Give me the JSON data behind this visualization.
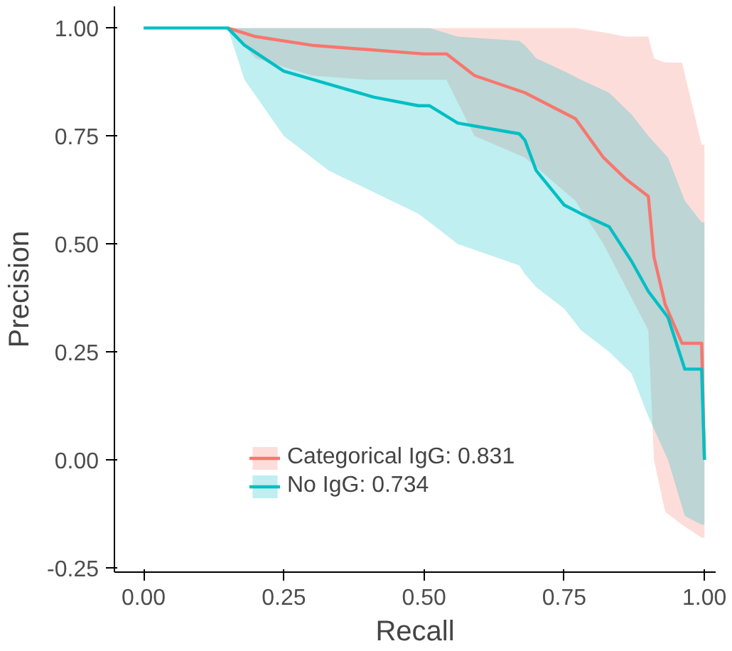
{
  "chart_data": {
    "type": "line",
    "xlabel": "Recall",
    "ylabel": "Precision",
    "xlim": [
      -0.052,
      1.02
    ],
    "ylim": [
      -0.26,
      1.05
    ],
    "xticks": [
      {
        "value": 0,
        "label": "0.00"
      },
      {
        "value": 0.25,
        "label": "0.25"
      },
      {
        "value": 0.5,
        "label": "0.50"
      },
      {
        "value": 0.75,
        "label": "0.75"
      },
      {
        "value": 1,
        "label": "1.00"
      }
    ],
    "yticks": [
      {
        "value": -0.25,
        "label": "-0.25"
      },
      {
        "value": 0,
        "label": "0.00"
      },
      {
        "value": 0.25,
        "label": "0.25"
      },
      {
        "value": 0.5,
        "label": "0.50"
      },
      {
        "value": 0.75,
        "label": "0.75"
      },
      {
        "value": 1,
        "label": "1.00"
      }
    ],
    "grid": false,
    "legend": "bottom",
    "series": [
      {
        "name": "Categorical IgG: 0.831",
        "color": "#f8766d",
        "x": [
          0,
          0.15,
          0.2,
          0.3,
          0.4,
          0.5,
          0.54,
          0.59,
          0.68,
          0.77,
          0.82,
          0.86,
          0.9,
          0.91,
          0.93,
          0.96,
          0.995,
          1.0
        ],
        "values": [
          null,
          1,
          0.98,
          0.96,
          0.95,
          0.94,
          0.94,
          0.89,
          0.85,
          0.79,
          0.7,
          0.65,
          0.61,
          0.47,
          0.36,
          0.27,
          0.27,
          0
        ],
        "upper": [
          1,
          1,
          1,
          1,
          1,
          1,
          1,
          1,
          1,
          1,
          0.99,
          0.98,
          0.98,
          0.93,
          0.92,
          0.92,
          0.73,
          0.73
        ],
        "lower": [
          1,
          1,
          0.93,
          0.89,
          0.88,
          0.88,
          0.88,
          0.75,
          0.7,
          0.6,
          0.5,
          0.4,
          0.3,
          0.0,
          -0.12,
          -0.15,
          -0.18,
          -0.18
        ]
      },
      {
        "name": "No IgG: 0.734",
        "color": "#00bfc4",
        "x": [
          0,
          0.15,
          0.18,
          0.25,
          0.33,
          0.41,
          0.49,
          0.51,
          0.56,
          0.67,
          0.68,
          0.7,
          0.75,
          0.78,
          0.83,
          0.87,
          0.9,
          0.935,
          0.965,
          0.995,
          1.0
        ],
        "values": [
          1,
          1,
          0.96,
          0.9,
          0.87,
          0.84,
          0.82,
          0.82,
          0.78,
          0.755,
          0.74,
          0.67,
          0.59,
          0.57,
          0.54,
          0.46,
          0.39,
          0.33,
          0.21,
          0.21,
          0
        ],
        "upper": [
          1,
          1,
          1,
          1,
          1,
          1,
          1,
          1,
          0.98,
          0.97,
          0.96,
          0.93,
          0.9,
          0.88,
          0.85,
          0.8,
          0.75,
          0.7,
          0.6,
          0.55,
          0.55
        ],
        "lower": [
          1,
          1,
          0.88,
          0.75,
          0.67,
          0.62,
          0.57,
          0.55,
          0.5,
          0.45,
          0.43,
          0.4,
          0.35,
          0.3,
          0.25,
          0.2,
          0.1,
          0.0,
          -0.13,
          -0.15,
          -0.15
        ]
      }
    ]
  }
}
